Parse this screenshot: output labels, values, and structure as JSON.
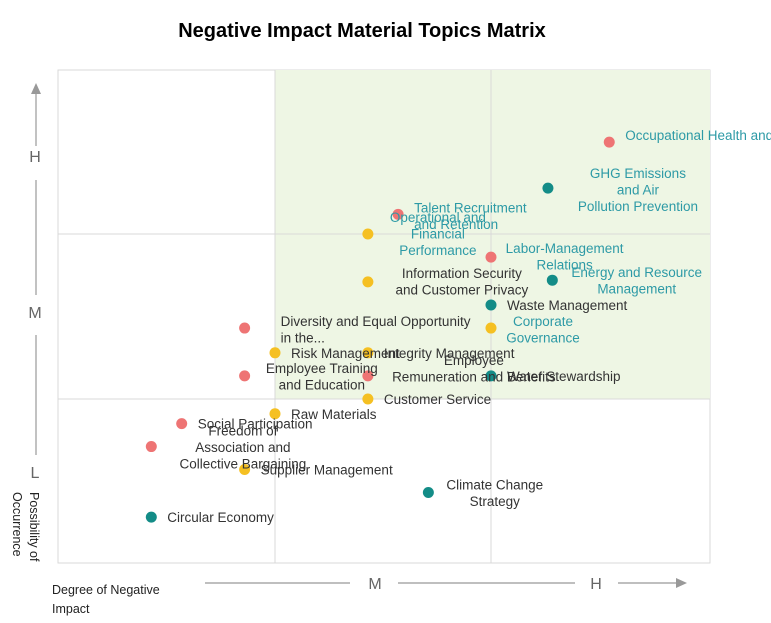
{
  "chart_data": {
    "type": "scatter",
    "title": "Negative Impact Material Topics Matrix",
    "xlabel": "Degree of Negative Impact",
    "ylabel": "Possibility of Occurrence",
    "x_levels": [
      "M",
      "H"
    ],
    "y_levels": [
      "H",
      "M",
      "L"
    ],
    "xlim": [
      0,
      3
    ],
    "ylim": [
      0,
      3
    ],
    "grid": true,
    "highlight_region": {
      "x": [
        1,
        3
      ],
      "y": [
        1,
        3
      ],
      "color": "#eef6e4"
    },
    "colors": {
      "title": "#1f5c4c",
      "teal": "#138c87",
      "red": "#ee7474",
      "yellow": "#f5c022",
      "label_dark": "#333333",
      "label_teal": "#2d9aa6",
      "grid": "#d9d9d9",
      "axis": "#999999"
    },
    "points": [
      {
        "label": "Occupational Health and Safety",
        "x": 2.54,
        "y": 2.56,
        "color": "red",
        "label_color": "teal"
      },
      {
        "label": "GHG Emissions and Air Pollution Prevention",
        "x": 2.26,
        "y": 2.28,
        "color": "teal",
        "label_color": "teal"
      },
      {
        "label": "Talent Recruitment and Retention",
        "x": 1.57,
        "y": 2.12,
        "color": "red",
        "label_color": "teal"
      },
      {
        "label": "Operational and Financial Performance",
        "x": 1.43,
        "y": 2.0,
        "color": "yellow",
        "label_color": "teal"
      },
      {
        "label": "Labor-Management Relations",
        "x": 2.0,
        "y": 1.86,
        "color": "red",
        "label_color": "teal"
      },
      {
        "label": "Information Security and Customer Privacy",
        "x": 1.43,
        "y": 1.71,
        "color": "yellow",
        "label_color": "dark"
      },
      {
        "label": "Energy and Resource Management",
        "x": 2.28,
        "y": 1.72,
        "color": "teal",
        "label_color": "teal"
      },
      {
        "label": "Waste Management",
        "x": 2.0,
        "y": 1.57,
        "color": "teal",
        "label_color": "dark"
      },
      {
        "label": "Corporate Governance",
        "x": 2.0,
        "y": 1.43,
        "color": "yellow",
        "label_color": "teal"
      },
      {
        "label": "Diversity and Equal Opportunity in the...",
        "x": 0.86,
        "y": 1.43,
        "color": "red",
        "label_color": "dark"
      },
      {
        "label": "Risk Management",
        "x": 1.0,
        "y": 1.28,
        "color": "yellow",
        "label_color": "dark"
      },
      {
        "label": "Integrity Management",
        "x": 1.43,
        "y": 1.28,
        "color": "yellow",
        "label_color": "dark"
      },
      {
        "label": "Employee Training and Education",
        "x": 0.86,
        "y": 1.14,
        "color": "red",
        "label_color": "dark"
      },
      {
        "label": "Employee Remuneration and Benefits",
        "x": 1.43,
        "y": 1.14,
        "color": "red",
        "label_color": "dark"
      },
      {
        "label": "Water Stewardship",
        "x": 2.0,
        "y": 1.14,
        "color": "teal",
        "label_color": "dark"
      },
      {
        "label": "Customer Service",
        "x": 1.43,
        "y": 1.0,
        "color": "yellow",
        "label_color": "dark"
      },
      {
        "label": "Raw Materials",
        "x": 1.0,
        "y": 0.91,
        "color": "yellow",
        "label_color": "dark"
      },
      {
        "label": "Social Participation",
        "x": 0.57,
        "y": 0.85,
        "color": "red",
        "label_color": "dark"
      },
      {
        "label": "Freedom of Association and Collective Bargaining",
        "x": 0.43,
        "y": 0.71,
        "color": "red",
        "label_color": "dark"
      },
      {
        "label": "Supplier Management",
        "x": 0.86,
        "y": 0.57,
        "color": "yellow",
        "label_color": "dark"
      },
      {
        "label": "Climate Change Strategy",
        "x": 1.71,
        "y": 0.43,
        "color": "teal",
        "label_color": "dark"
      },
      {
        "label": "Circular Economy",
        "x": 0.43,
        "y": 0.28,
        "color": "teal",
        "label_color": "dark"
      }
    ]
  }
}
